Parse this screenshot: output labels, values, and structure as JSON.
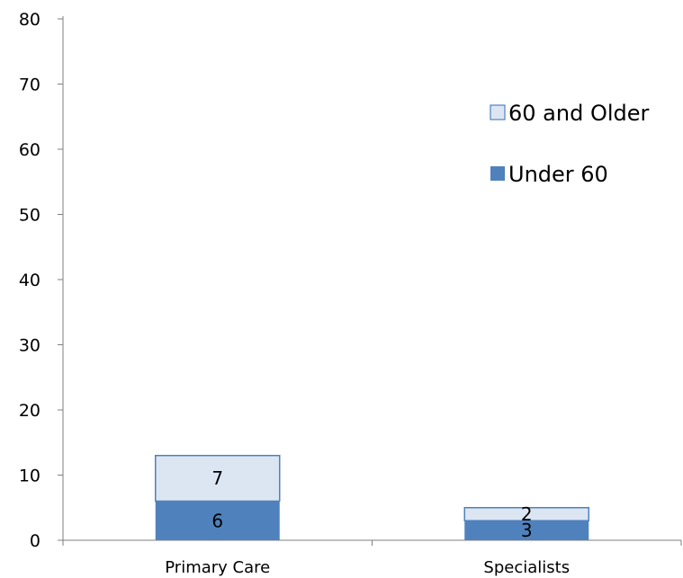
{
  "chart_data": {
    "type": "bar",
    "stacked": true,
    "categories": [
      "Primary Care",
      "Specialists"
    ],
    "series": [
      {
        "name": "Under 60",
        "values": [
          6,
          3
        ],
        "color": "#4f81bd"
      },
      {
        "name": "60 and Older",
        "values": [
          7,
          2
        ],
        "color": "#dce6f2",
        "stroke": "#4f81bd"
      }
    ],
    "data_labels": [
      [
        "6",
        "3"
      ],
      [
        "7",
        "2"
      ]
    ],
    "ylim": [
      0,
      80
    ],
    "yticks": [
      "0",
      "10",
      "20",
      "30",
      "40",
      "50",
      "60",
      "70",
      "80"
    ],
    "title": "",
    "xlabel": "",
    "ylabel": "",
    "legend": {
      "position": "right",
      "entries": [
        "60 and Older",
        "Under 60"
      ]
    },
    "grid": false
  }
}
